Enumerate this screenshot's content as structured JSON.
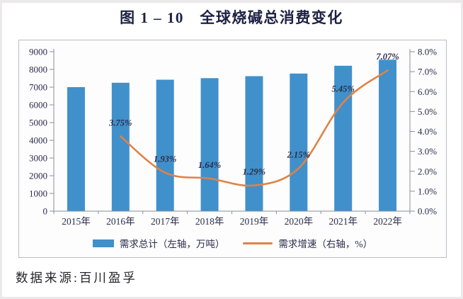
{
  "page": {
    "title": "图 1 – 10　全球烧碱总消费变化",
    "source_note": "数据来源:百川盈孚"
  },
  "colors": {
    "bar": "#4090cb",
    "line": "#e08245",
    "axis": "#8a8f99",
    "text": "#2a2c48",
    "frame_border": "#b8bcc4",
    "page_edge": "#ebe9e9"
  },
  "chart_data": {
    "type": "bar",
    "subtype": "bar+line combo",
    "title": "图 1 – 10　全球烧碱总消费变化",
    "categories": [
      "2015年",
      "2016年",
      "2017年",
      "2018年",
      "2019年",
      "2020年",
      "2021年",
      "2022年"
    ],
    "series": [
      {
        "name": "需求总计（左轴，万吨）",
        "type": "bar",
        "axis": "left",
        "values": [
          7000,
          7250,
          7420,
          7510,
          7620,
          7770,
          8210,
          8550
        ]
      },
      {
        "name": "需求增速（右轴，%）",
        "type": "line",
        "axis": "right",
        "values": [
          null,
          3.75,
          1.93,
          1.64,
          1.29,
          2.15,
          5.45,
          7.07
        ],
        "point_labels": [
          null,
          "3.75%",
          "1.93%",
          "1.64%",
          "1.29%",
          "2.15%",
          "5.45%",
          "7.07%"
        ]
      }
    ],
    "left_axis": {
      "min": 0,
      "max": 9000,
      "step": 1000,
      "ticks": [
        "0",
        "1000",
        "2000",
        "3000",
        "4000",
        "5000",
        "6000",
        "7000",
        "8000",
        "9000"
      ]
    },
    "right_axis": {
      "min": 0,
      "max": 8,
      "step": 1,
      "ticks": [
        "0.0%",
        "1.0%",
        "2.0%",
        "3.0%",
        "4.0%",
        "5.0%",
        "6.0%",
        "7.0%",
        "8.0%"
      ]
    },
    "grid": false,
    "legend_position": "bottom"
  }
}
